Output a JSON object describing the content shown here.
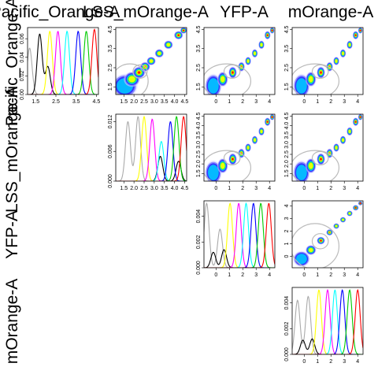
{
  "colors": {
    "density_low": "#ffffff",
    "density_steps": [
      "#d8d8ff",
      "#8080ff",
      "#2a2aff",
      "#00c8ff",
      "#30ff30",
      "#ffff00",
      "#ff8800",
      "#ff0000"
    ],
    "ellipse": "#bbbbbb",
    "hist_lines": [
      "#aaaaaa",
      "#000000",
      "#ffff00",
      "#ff00ff",
      "#00ffff",
      "#0000ff",
      "#00cc00",
      "#ff0000"
    ]
  },
  "chart_data": {
    "type": "scatter-matrix",
    "channels": [
      {
        "key": "Pacific_Orange-A",
        "col_label": "Pacific_Orange-A",
        "row_label": "Pacific_Orange-A",
        "range": [
          1.1,
          4.6
        ],
        "ticks": [
          "1.5",
          "2.5",
          "3.5",
          "4.5"
        ]
      },
      {
        "key": "LSS_mOrange-A",
        "col_label": "LSS_mOrange-A",
        "row_label": "LSS_mOrange-A",
        "range": [
          1.1,
          4.6
        ],
        "ticks": [
          "1.5",
          "2.0",
          "2.5",
          "3.0",
          "3.5",
          "4.0",
          "4.5"
        ]
      },
      {
        "key": "YFP-A",
        "col_label": "YFP-A",
        "row_label": "YFP-A",
        "range": [
          -0.9,
          4.4
        ],
        "ticks": [
          "0",
          "1",
          "2",
          "3",
          "4"
        ]
      },
      {
        "key": "mOrange-A",
        "col_label": "mOrange-A",
        "row_label": "mOrange-A",
        "range": [
          -0.9,
          4.4
        ],
        "ticks": [
          "0",
          "1",
          "2",
          "3",
          "4"
        ]
      }
    ],
    "diagonal_y_ticks": [
      [
        "0.00",
        "0.02",
        "0.04",
        "0.06"
      ],
      [
        "0.000",
        "0.006",
        "0.012"
      ],
      [
        "0.000",
        "0.002",
        "0.004"
      ],
      [
        "0.000",
        "0.002",
        "0.004"
      ]
    ],
    "diagonal_y_max": [
      0.072,
      0.0135,
      0.0052,
      0.0052
    ],
    "populations": [
      {
        "center": [
          1.55,
          1.55,
          -0.2,
          -0.2
        ],
        "spread": 0.22,
        "intensity": 0.55
      },
      {
        "center": [
          1.9,
          1.9,
          0.5,
          0.5
        ],
        "spread": 0.14,
        "intensity": 0.7
      },
      {
        "center": [
          2.25,
          2.25,
          1.25,
          1.25
        ],
        "spread": 0.11,
        "intensity": 0.95
      },
      {
        "center": [
          2.55,
          2.55,
          1.9,
          1.9
        ],
        "spread": 0.09,
        "intensity": 0.85
      },
      {
        "center": [
          2.85,
          2.85,
          2.4,
          2.4
        ],
        "spread": 0.08,
        "intensity": 0.8
      },
      {
        "center": [
          3.25,
          3.25,
          2.9,
          2.9
        ],
        "spread": 0.08,
        "intensity": 0.8
      },
      {
        "center": [
          3.7,
          3.7,
          3.4,
          3.4
        ],
        "spread": 0.08,
        "intensity": 0.8
      },
      {
        "center": [
          4.2,
          4.2,
          3.85,
          3.85
        ],
        "spread": 0.08,
        "intensity": 1.0
      },
      {
        "center": [
          4.45,
          4.45,
          4.2,
          4.2
        ],
        "spread": 0.06,
        "intensity": 1.0
      }
    ],
    "ellipses": [
      {
        "center": [
          1.8,
          1.8,
          0.8,
          0.8
        ],
        "radii": [
          0.9,
          0.9,
          1.8,
          1.8
        ],
        "angle_deg": 0
      },
      {
        "center": [
          2.3,
          2.3,
          1.2,
          1.2
        ],
        "radii": [
          0.35,
          0.35,
          0.6,
          0.6
        ],
        "angle_deg": 0
      }
    ],
    "diagonal_peaks": [
      [
        {
          "color": "#aaaaaa",
          "peaks": [
            [
              1.2,
              0.05
            ]
          ]
        },
        {
          "color": "#000000",
          "peaks": [
            [
              1.7,
              0.065
            ],
            [
              2.1,
              0.03
            ]
          ]
        },
        {
          "color": "#ffff00",
          "peaks": [
            [
              2.2,
              0.068
            ]
          ]
        },
        {
          "color": "#ff00ff",
          "peaks": [
            [
              2.6,
              0.068
            ]
          ]
        },
        {
          "color": "#00ffff",
          "peaks": [
            [
              3.05,
              0.068
            ]
          ]
        },
        {
          "color": "#0000ff",
          "peaks": [
            [
              3.6,
              0.068
            ]
          ]
        },
        {
          "color": "#00cc00",
          "peaks": [
            [
              4.0,
              0.068
            ]
          ]
        },
        {
          "color": "#ff0000",
          "peaks": [
            [
              4.4,
              0.07
            ]
          ]
        }
      ],
      [
        {
          "color": "#aaaaaa",
          "peaks": [
            [
              1.7,
              0.012
            ],
            [
              2.2,
              0.013
            ]
          ]
        },
        {
          "color": "#000000",
          "peaks": [
            [
              3.3,
              0.005
            ],
            [
              4.2,
              0.004
            ]
          ]
        },
        {
          "color": "#ffff00",
          "peaks": [
            [
              2.5,
              0.013
            ]
          ]
        },
        {
          "color": "#ff00ff",
          "peaks": [
            [
              2.9,
              0.0125
            ]
          ]
        },
        {
          "color": "#00ffff",
          "peaks": [
            [
              3.35,
              0.008
            ]
          ]
        },
        {
          "color": "#0000ff",
          "peaks": [
            [
              3.8,
              0.012
            ]
          ]
        },
        {
          "color": "#00cc00",
          "peaks": [
            [
              4.1,
              0.013
            ]
          ]
        },
        {
          "color": "#ff0000",
          "peaks": [
            [
              4.45,
              0.013
            ]
          ]
        }
      ],
      [
        {
          "color": "#aaaaaa",
          "peaks": [
            [
              -0.7,
              0.005
            ],
            [
              0.3,
              0.003
            ]
          ]
        },
        {
          "color": "#000000",
          "peaks": [
            [
              -0.2,
              0.0012
            ],
            [
              0.6,
              0.0014
            ]
          ]
        },
        {
          "color": "#ffff00",
          "peaks": [
            [
              1.05,
              0.005
            ]
          ]
        },
        {
          "color": "#ff00ff",
          "peaks": [
            [
              1.7,
              0.005
            ]
          ]
        },
        {
          "color": "#00ffff",
          "peaks": [
            [
              2.25,
              0.005
            ]
          ]
        },
        {
          "color": "#0000ff",
          "peaks": [
            [
              2.8,
              0.005
            ]
          ]
        },
        {
          "color": "#00cc00",
          "peaks": [
            [
              3.35,
              0.005
            ]
          ]
        },
        {
          "color": "#ff0000",
          "peaks": [
            [
              3.95,
              0.005
            ]
          ]
        }
      ],
      [
        {
          "color": "#aaaaaa",
          "peaks": [
            [
              -0.5,
              0.0042
            ],
            [
              0.3,
              0.0045
            ]
          ]
        },
        {
          "color": "#000000",
          "peaks": [
            [
              -0.1,
              0.0011
            ],
            [
              0.6,
              0.0012
            ]
          ]
        },
        {
          "color": "#ffff00",
          "peaks": [
            [
              1.1,
              0.005
            ]
          ]
        },
        {
          "color": "#ff00ff",
          "peaks": [
            [
              1.75,
              0.005
            ]
          ]
        },
        {
          "color": "#00ffff",
          "peaks": [
            [
              2.3,
              0.005
            ]
          ]
        },
        {
          "color": "#0000ff",
          "peaks": [
            [
              2.85,
              0.005
            ]
          ]
        },
        {
          "color": "#00cc00",
          "peaks": [
            [
              3.4,
              0.005
            ]
          ]
        },
        {
          "color": "#ff0000",
          "peaks": [
            [
              4.0,
              0.005
            ]
          ]
        }
      ]
    ]
  }
}
